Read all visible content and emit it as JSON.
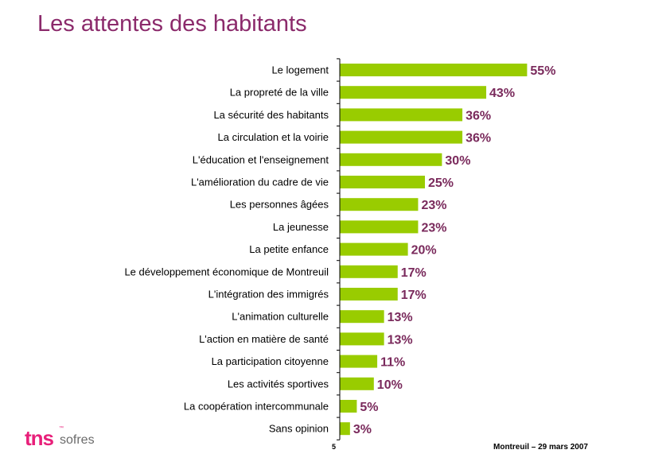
{
  "page": {
    "title": "Les attentes des habitants",
    "page_number": "5",
    "footer": "Montreuil – 29 mars 2007"
  },
  "logo": {
    "brand": "tns",
    "tm": "™",
    "name": "sofres"
  },
  "colors": {
    "bar": "#99cc00",
    "value_text": "#7a2a5c",
    "title": "#8b2a6b",
    "logo": "#e8207a"
  },
  "chart_data": {
    "type": "bar",
    "orientation": "horizontal",
    "title": "Les attentes des habitants",
    "xlabel": "",
    "ylabel": "",
    "unit": "%",
    "xlim": [
      0,
      60
    ],
    "categories": [
      "Le logement",
      "La propreté de la ville",
      "La sécurité des habitants",
      "La circulation et la voirie",
      "L'éducation et l'enseignement",
      "L'amélioration du cadre de vie",
      "Les personnes âgées",
      "La jeunesse",
      "La petite enfance",
      "Le développement économique de Montreuil",
      "L'intégration des immigrés",
      "L'animation culturelle",
      "L'action en matière de santé",
      "La participation citoyenne",
      "Les activités sportives",
      "La coopération intercommunale",
      "Sans opinion"
    ],
    "values": [
      55,
      43,
      36,
      36,
      30,
      25,
      23,
      23,
      20,
      17,
      17,
      13,
      13,
      11,
      10,
      5,
      3
    ],
    "value_labels": [
      "55%",
      "43%",
      "36%",
      "36%",
      "30%",
      "25%",
      "23%",
      "23%",
      "20%",
      "17%",
      "17%",
      "13%",
      "13%",
      "11%",
      "10%",
      "5%",
      "3%"
    ]
  }
}
